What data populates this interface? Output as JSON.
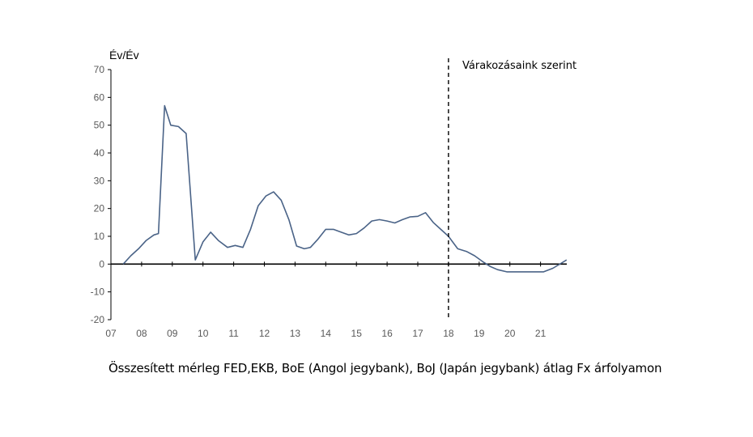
{
  "caption": "Összesített mérleg FED,EKB, BoE (Angol jegybank), BoJ (Japán jegybank) átlag Fx árfolyamon",
  "colors": {
    "line": "#4a6387",
    "axis": "#000000",
    "text": "#595959"
  },
  "chart_data": {
    "type": "line",
    "ylabel": "Év/Év",
    "annotation": "Várakozásaink szerint",
    "forecast_start": 18,
    "ylim": [
      -20,
      70
    ],
    "xlim": [
      7,
      22.2
    ],
    "yticks": [
      70,
      60,
      50,
      40,
      30,
      20,
      10,
      0,
      -10,
      -20
    ],
    "yticklabels": [
      "70",
      "60",
      "50",
      "40",
      "30",
      "20",
      "10",
      "0",
      "-10",
      "-20"
    ],
    "xticks": [
      7,
      8,
      9,
      10,
      11,
      12,
      13,
      14,
      15,
      16,
      17,
      18,
      19,
      20,
      21
    ],
    "xticklabels": [
      "07",
      "08",
      "09",
      "10",
      "11",
      "12",
      "13",
      "14",
      "15",
      "16",
      "17",
      "18",
      "19",
      "20",
      "21"
    ],
    "grid": false,
    "series": [
      {
        "x": [
          7.4,
          7.65,
          7.9,
          8.15,
          8.4,
          8.55,
          8.75,
          8.95,
          9.2,
          9.45,
          9.75,
          10.0,
          10.25,
          10.5,
          10.8,
          11.05,
          11.3,
          11.55,
          11.8,
          12.05,
          12.3,
          12.55,
          12.8,
          13.05,
          13.3,
          13.5,
          13.75,
          14.0,
          14.25,
          14.5,
          14.75,
          15.0,
          15.25,
          15.5,
          15.75,
          16.0,
          16.25,
          16.5,
          16.75,
          17.0,
          17.25,
          17.5,
          17.75,
          18.0,
          18.3,
          18.6,
          18.85,
          19.1,
          19.35,
          19.6,
          19.9,
          20.2,
          20.5,
          20.8,
          21.1,
          21.4,
          21.6,
          21.85
        ],
        "values": [
          0,
          3,
          5.5,
          8.5,
          10.5,
          11,
          57,
          50,
          49.5,
          47,
          1.5,
          8,
          11.5,
          8.5,
          6,
          6.7,
          6,
          12.5,
          21,
          24.5,
          26,
          23,
          16,
          6.5,
          5.5,
          6,
          9,
          12.5,
          12.5,
          11.5,
          10.5,
          11,
          13,
          15.5,
          16,
          15.5,
          14.8,
          16,
          17,
          17.2,
          18.5,
          15,
          12.5,
          10,
          5.5,
          4.5,
          3,
          1,
          -0.8,
          -2,
          -2.8,
          -2.8,
          -2.8,
          -2.8,
          -2.8,
          -1.5,
          -0.2,
          1.5
        ]
      }
    ]
  }
}
